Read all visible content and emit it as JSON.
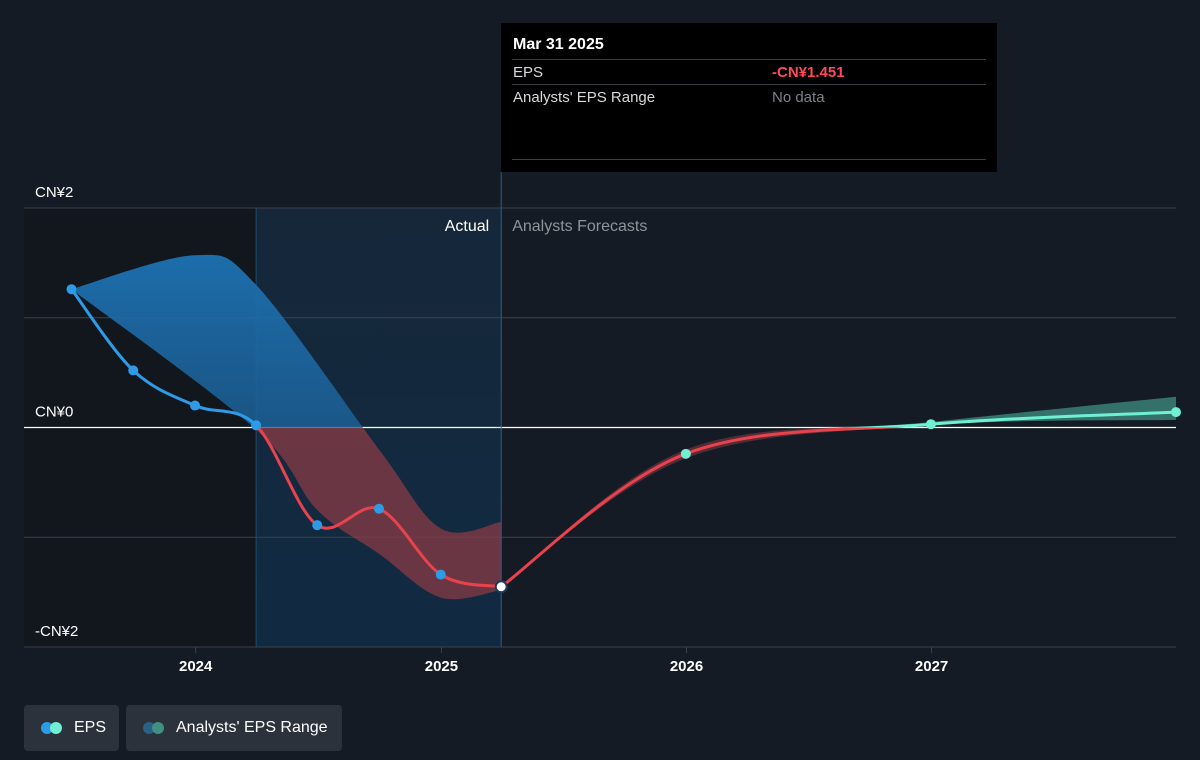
{
  "tooltip": {
    "date": "Mar 31 2025",
    "rows": [
      {
        "label": "EPS",
        "value": "-CN¥1.451"
      },
      {
        "label": "Analysts' EPS Range",
        "value": "No data"
      }
    ]
  },
  "legend": {
    "eps_label": "EPS",
    "range_label": "Analysts' EPS Range"
  },
  "colors": {
    "background": "#151b24",
    "eps_actual": "#2d9be6",
    "eps_negative": "#e8424d",
    "forecast": "#6ff0d2",
    "range_actual": "#1f6ea8",
    "range_forecast": "#3f8f82",
    "range_negative": "#8a3b45"
  },
  "chart_data": {
    "type": "line",
    "title": "",
    "ylim": [
      -2,
      2
    ],
    "y_ticks": [
      {
        "value": 2,
        "label": "CN¥2"
      },
      {
        "value": 0,
        "label": "CN¥0"
      },
      {
        "value": -2,
        "label": "-CN¥2"
      }
    ],
    "x_ticks": [
      "2024",
      "2025",
      "2026",
      "2027"
    ],
    "x_range": [
      "2023-06-01",
      "2027-12-31"
    ],
    "sections": {
      "actual_label": "Actual",
      "forecast_label": "Analysts Forecasts",
      "divider_date": "2025-03-31",
      "shade_start_date": "2024-03-31"
    },
    "grid": true,
    "legend_position": "bottom-left",
    "series": [
      {
        "name": "EPS",
        "kind": "actual",
        "points": [
          {
            "date": "2023-06-30",
            "value": 1.26
          },
          {
            "date": "2023-09-30",
            "value": 0.52
          },
          {
            "date": "2023-12-31",
            "value": 0.2
          },
          {
            "date": "2024-03-31",
            "value": 0.02
          },
          {
            "date": "2024-06-30",
            "value": -0.89
          },
          {
            "date": "2024-09-30",
            "value": -0.74
          },
          {
            "date": "2024-12-31",
            "value": -1.34
          },
          {
            "date": "2025-03-31",
            "value": -1.451
          }
        ]
      },
      {
        "name": "EPS",
        "kind": "forecast",
        "points": [
          {
            "date": "2025-03-31",
            "value": -1.451
          },
          {
            "date": "2025-12-31",
            "value": -0.24
          },
          {
            "date": "2026-12-31",
            "value": 0.03
          },
          {
            "date": "2027-12-31",
            "value": 0.14
          }
        ]
      },
      {
        "name": "Analysts' EPS Range",
        "kind": "range",
        "upper": [
          {
            "date": "2023-06-30",
            "value": 1.26
          },
          {
            "date": "2023-12-31",
            "value": 1.57
          },
          {
            "date": "2024-03-31",
            "value": 1.3
          },
          {
            "date": "2024-09-30",
            "value": -0.2
          },
          {
            "date": "2024-12-31",
            "value": -0.92
          },
          {
            "date": "2025-03-31",
            "value": -0.86
          }
        ],
        "lower": [
          {
            "date": "2023-06-30",
            "value": 1.26
          },
          {
            "date": "2024-03-31",
            "value": -0.02
          },
          {
            "date": "2024-06-30",
            "value": -0.75
          },
          {
            "date": "2024-09-30",
            "value": -1.15
          },
          {
            "date": "2024-12-31",
            "value": -1.55
          },
          {
            "date": "2025-03-31",
            "value": -1.48
          }
        ]
      },
      {
        "name": "Analysts' EPS Range",
        "kind": "forecast-range",
        "upper": [
          {
            "date": "2025-03-31",
            "value": -1.451
          },
          {
            "date": "2025-12-31",
            "value": -0.2
          },
          {
            "date": "2026-12-31",
            "value": 0.05
          },
          {
            "date": "2027-12-31",
            "value": 0.28
          }
        ],
        "lower": [
          {
            "date": "2025-03-31",
            "value": -1.451
          },
          {
            "date": "2025-12-31",
            "value": -0.28
          },
          {
            "date": "2026-12-31",
            "value": 0.02
          },
          {
            "date": "2027-12-31",
            "value": 0.07
          }
        ]
      }
    ]
  }
}
